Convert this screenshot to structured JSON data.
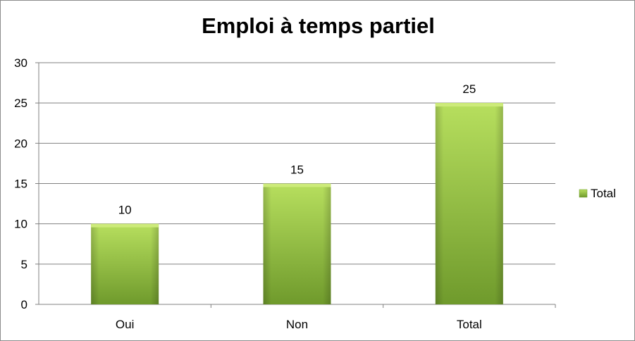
{
  "chart_data": {
    "type": "bar",
    "title": "Emploi à temps partiel",
    "categories": [
      "Oui",
      "Non",
      "Total"
    ],
    "series": [
      {
        "name": "Total",
        "values": [
          10,
          15,
          25
        ]
      }
    ],
    "data_labels": [
      "10",
      "15",
      "25"
    ],
    "ylim": [
      0,
      30
    ],
    "yticks": [
      0,
      5,
      10,
      15,
      20,
      25,
      30
    ],
    "ytick_labels": [
      "0",
      "5",
      "10",
      "15",
      "20",
      "25",
      "30"
    ],
    "xlabel": "",
    "ylabel": "",
    "grid": true,
    "legend": {
      "position": "right",
      "entries": [
        "Total"
      ]
    },
    "colors": {
      "bar_light": "#b7df5e",
      "bar_dark": "#6f9a2c",
      "bar_top": "#cdeb7a",
      "grid": "#808080"
    }
  }
}
